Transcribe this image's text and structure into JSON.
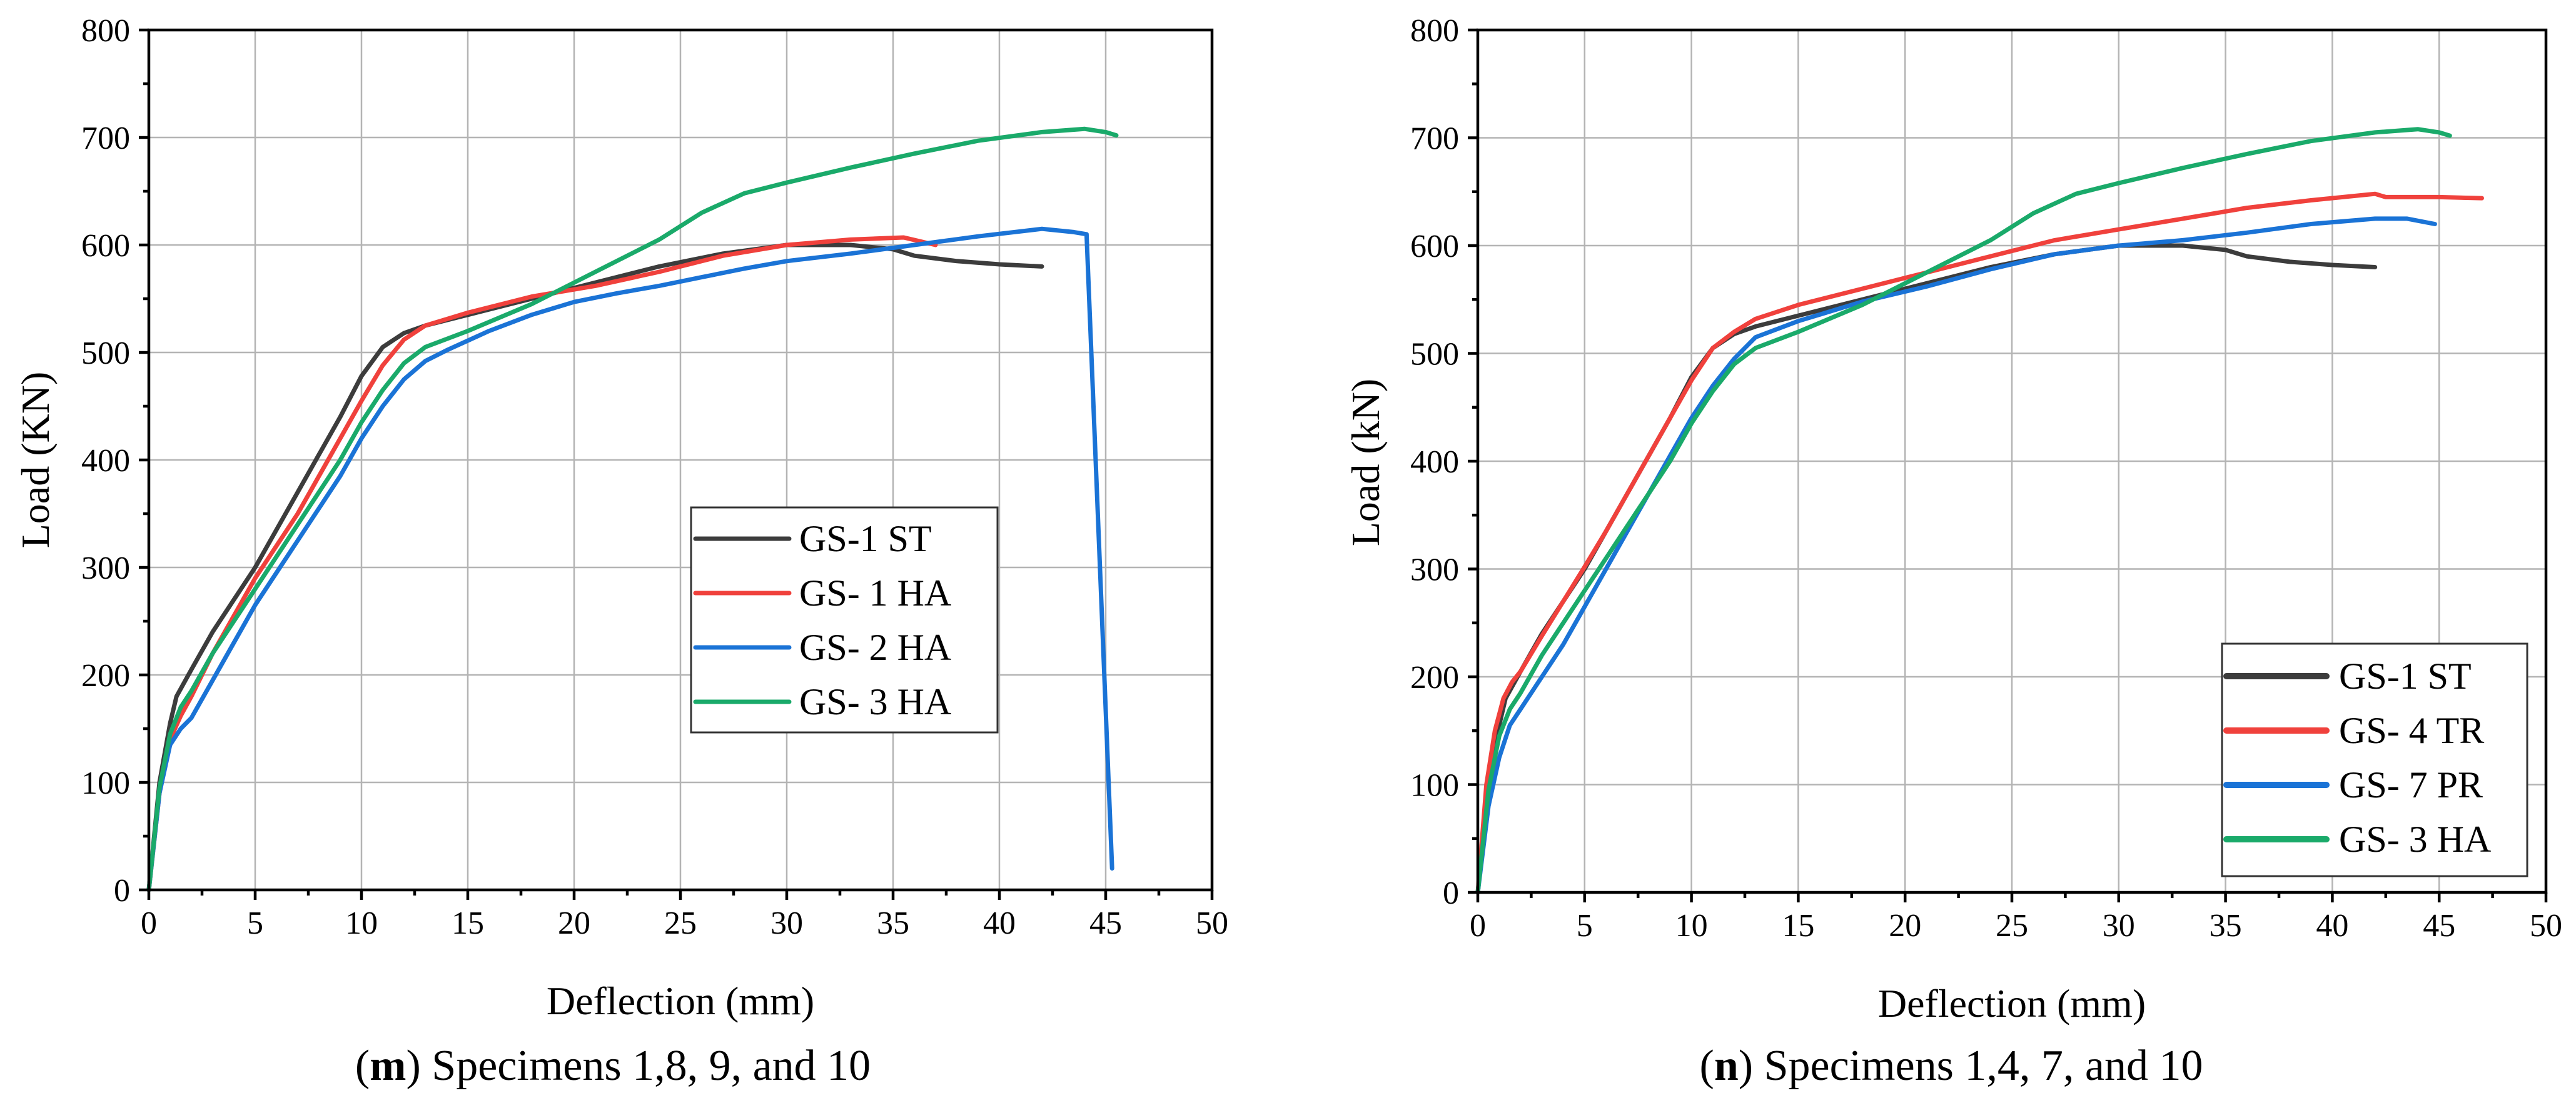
{
  "colors": {
    "gs1_st": "#3c3c3c",
    "red": "#f0413c",
    "blue": "#1a73d6",
    "green": "#1aaa6a"
  },
  "chart_data": [
    {
      "type": "line",
      "panel": "m",
      "caption_letter": "m",
      "caption_text": ") Specimens 1,8, 9, and 10",
      "xlabel": "Deflection (mm)",
      "ylabel": "Load (KN)",
      "xlim": [
        0,
        50
      ],
      "ylim": [
        0,
        800
      ],
      "xticks": [
        "0",
        "5",
        "10",
        "15",
        "20",
        "25",
        "30",
        "35",
        "40",
        "45",
        "50"
      ],
      "yticks": [
        "0",
        "100",
        "200",
        "300",
        "400",
        "500",
        "600",
        "700",
        "800"
      ],
      "grid": true,
      "legend_position": "center-right",
      "series": [
        {
          "name": "GS-1 ST",
          "color": "#3c3c3c",
          "x": [
            0,
            0.5,
            1.0,
            1.3,
            2,
            3,
            4,
            5,
            6,
            7,
            8,
            9,
            10,
            11,
            12,
            13,
            15,
            18,
            21,
            24,
            27,
            30,
            33,
            35,
            36,
            38,
            40,
            42
          ],
          "y": [
            0,
            100,
            155,
            180,
            205,
            240,
            270,
            300,
            335,
            370,
            405,
            440,
            478,
            505,
            518,
            525,
            535,
            550,
            565,
            580,
            592,
            600,
            600,
            596,
            590,
            585,
            582,
            580
          ]
        },
        {
          "name": "GS- 1 HA",
          "color": "#f0413c",
          "x": [
            0,
            0.5,
            1.0,
            1.5,
            2,
            3,
            4,
            5,
            6,
            7,
            8,
            9,
            10,
            11,
            12,
            13,
            15,
            18,
            21,
            24,
            27,
            30,
            33,
            35.5,
            37
          ],
          "y": [
            0,
            90,
            140,
            162,
            180,
            220,
            255,
            290,
            320,
            350,
            385,
            420,
            455,
            488,
            512,
            525,
            537,
            552,
            562,
            575,
            590,
            600,
            605,
            607,
            600
          ]
        },
        {
          "name": "GS- 2 HA",
          "color": "#1a73d6",
          "x": [
            0,
            0.5,
            1.0,
            1.5,
            2,
            3,
            4,
            5,
            6,
            7,
            8,
            9,
            10,
            11,
            12,
            13,
            14,
            16,
            18,
            20,
            22,
            24,
            26,
            28,
            30,
            33,
            36,
            39,
            42,
            43.5,
            44.1,
            45.3
          ],
          "y": [
            0,
            90,
            135,
            150,
            160,
            195,
            230,
            265,
            295,
            325,
            355,
            385,
            420,
            450,
            475,
            492,
            502,
            520,
            535,
            547,
            555,
            562,
            570,
            578,
            585,
            592,
            600,
            608,
            615,
            612,
            610,
            20
          ]
        },
        {
          "name": "GS- 3 HA",
          "color": "#1aaa6a",
          "x": [
            0,
            0.5,
            1.0,
            1.5,
            2,
            3,
            4,
            5,
            6,
            7,
            8,
            9,
            10,
            11,
            12,
            13,
            15,
            18,
            21,
            24,
            26,
            28,
            30,
            33,
            36,
            39,
            42,
            44,
            45,
            45.5
          ],
          "y": [
            0,
            95,
            145,
            170,
            185,
            220,
            250,
            280,
            310,
            340,
            370,
            400,
            435,
            465,
            490,
            505,
            520,
            545,
            575,
            605,
            630,
            648,
            658,
            672,
            685,
            697,
            705,
            708,
            705,
            702
          ]
        }
      ]
    },
    {
      "type": "line",
      "panel": "n",
      "caption_letter": "n",
      "caption_text": ") Specimens 1,4, 7, and 10",
      "xlabel": "Deflection (mm)",
      "ylabel": "Load (kN)",
      "xlim": [
        0,
        50
      ],
      "ylim": [
        0,
        800
      ],
      "xticks": [
        "0",
        "5",
        "10",
        "15",
        "20",
        "25",
        "30",
        "35",
        "40",
        "45",
        "50"
      ],
      "yticks": [
        "0",
        "100",
        "200",
        "300",
        "400",
        "500",
        "600",
        "700",
        "800"
      ],
      "grid": true,
      "legend_position": "bottom-right",
      "series": [
        {
          "name": "GS-1 ST",
          "color": "#3c3c3c",
          "x": [
            0,
            0.5,
            1.0,
            1.3,
            2,
            3,
            4,
            5,
            6,
            7,
            8,
            9,
            10,
            11,
            12,
            13,
            15,
            18,
            21,
            24,
            27,
            30,
            33,
            35,
            36,
            38,
            40,
            42
          ],
          "y": [
            0,
            100,
            155,
            180,
            205,
            240,
            270,
            300,
            335,
            370,
            405,
            440,
            478,
            505,
            518,
            525,
            535,
            550,
            565,
            580,
            592,
            600,
            600,
            596,
            590,
            585,
            582,
            580
          ]
        },
        {
          "name": "GS- 4 TR",
          "color": "#f0413c",
          "x": [
            0,
            0.4,
            0.8,
            1.2,
            1.6,
            2,
            3,
            4,
            5,
            6,
            7,
            8,
            9,
            10,
            11,
            12,
            13,
            15,
            18,
            21,
            24,
            27,
            30,
            33,
            36,
            39,
            42,
            42.5,
            45,
            47
          ],
          "y": [
            0,
            100,
            150,
            180,
            195,
            205,
            238,
            270,
            302,
            335,
            370,
            405,
            440,
            475,
            505,
            520,
            532,
            545,
            560,
            575,
            590,
            605,
            615,
            625,
            635,
            642,
            648,
            645,
            645,
            644
          ]
        },
        {
          "name": "GS- 7 PR",
          "color": "#1a73d6",
          "x": [
            0,
            0.5,
            1.0,
            1.5,
            2,
            3,
            4,
            5,
            6,
            7,
            8,
            9,
            10,
            11,
            12,
            13,
            15,
            18,
            21,
            24,
            27,
            30,
            33,
            36,
            39,
            42,
            43.5,
            44.8
          ],
          "y": [
            0,
            80,
            125,
            155,
            170,
            200,
            230,
            265,
            300,
            335,
            370,
            405,
            440,
            470,
            495,
            515,
            530,
            548,
            562,
            578,
            592,
            600,
            605,
            612,
            620,
            625,
            625,
            620
          ]
        },
        {
          "name": "GS- 3 HA",
          "color": "#1aaa6a",
          "x": [
            0,
            0.5,
            1.0,
            1.5,
            2,
            3,
            4,
            5,
            6,
            7,
            8,
            9,
            10,
            11,
            12,
            13,
            15,
            18,
            21,
            24,
            26,
            28,
            30,
            33,
            36,
            39,
            42,
            44,
            45,
            45.5
          ],
          "y": [
            0,
            95,
            145,
            170,
            185,
            220,
            250,
            280,
            310,
            340,
            370,
            400,
            435,
            465,
            490,
            505,
            520,
            545,
            575,
            605,
            630,
            648,
            658,
            672,
            685,
            697,
            705,
            708,
            705,
            702
          ]
        }
      ]
    }
  ]
}
